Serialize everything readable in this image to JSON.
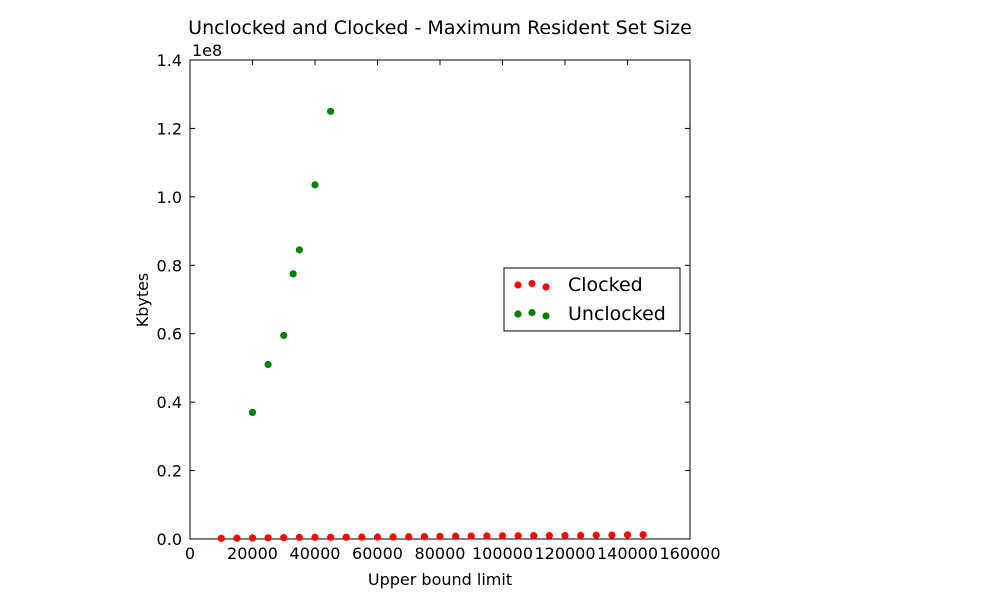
{
  "chart_data": {
    "type": "scatter",
    "title": "Unclocked and Clocked - Maximum Resident Set Size",
    "xlabel": "Upper bound limit",
    "ylabel": "Kbytes",
    "y_offset_label": "1e8",
    "xlim": [
      0,
      160000
    ],
    "ylim": [
      0,
      140000000
    ],
    "x_ticks": [
      0,
      20000,
      40000,
      60000,
      80000,
      100000,
      120000,
      140000,
      160000
    ],
    "x_tick_labels": [
      "0",
      "20000",
      "40000",
      "60000",
      "80000",
      "100000",
      "120000",
      "140000",
      "160000"
    ],
    "y_ticks": [
      0,
      20000000,
      40000000,
      60000000,
      80000000,
      100000000,
      120000000,
      140000000
    ],
    "y_tick_labels": [
      "0.0",
      "0.2",
      "0.4",
      "0.6",
      "0.8",
      "1.0",
      "1.2",
      "1.4"
    ],
    "grid": false,
    "legend_position": "center-right",
    "series": [
      {
        "name": "Clocked",
        "color": "#ff0000",
        "points": [
          [
            10000,
            200000
          ],
          [
            15000,
            250000
          ],
          [
            20000,
            300000
          ],
          [
            25000,
            350000
          ],
          [
            30000,
            400000
          ],
          [
            35000,
            450000
          ],
          [
            40000,
            480000
          ],
          [
            45000,
            500000
          ],
          [
            50000,
            520000
          ],
          [
            55000,
            550000
          ],
          [
            60000,
            580000
          ],
          [
            65000,
            600000
          ],
          [
            70000,
            650000
          ],
          [
            75000,
            700000
          ],
          [
            80000,
            750000
          ],
          [
            85000,
            800000
          ],
          [
            90000,
            850000
          ],
          [
            95000,
            900000
          ],
          [
            100000,
            920000
          ],
          [
            105000,
            950000
          ],
          [
            110000,
            980000
          ],
          [
            115000,
            1000000
          ],
          [
            120000,
            1000000
          ],
          [
            125000,
            1050000
          ],
          [
            130000,
            1100000
          ],
          [
            135000,
            1150000
          ],
          [
            140000,
            1200000
          ],
          [
            145000,
            1250000
          ]
        ]
      },
      {
        "name": "Unclocked",
        "color": "#008000",
        "points": [
          [
            20000,
            37000000
          ],
          [
            25000,
            51000000
          ],
          [
            30000,
            59500000
          ],
          [
            33000,
            77500000
          ],
          [
            35000,
            84500000
          ],
          [
            40000,
            103500000
          ],
          [
            45000,
            125000000
          ]
        ]
      }
    ]
  }
}
